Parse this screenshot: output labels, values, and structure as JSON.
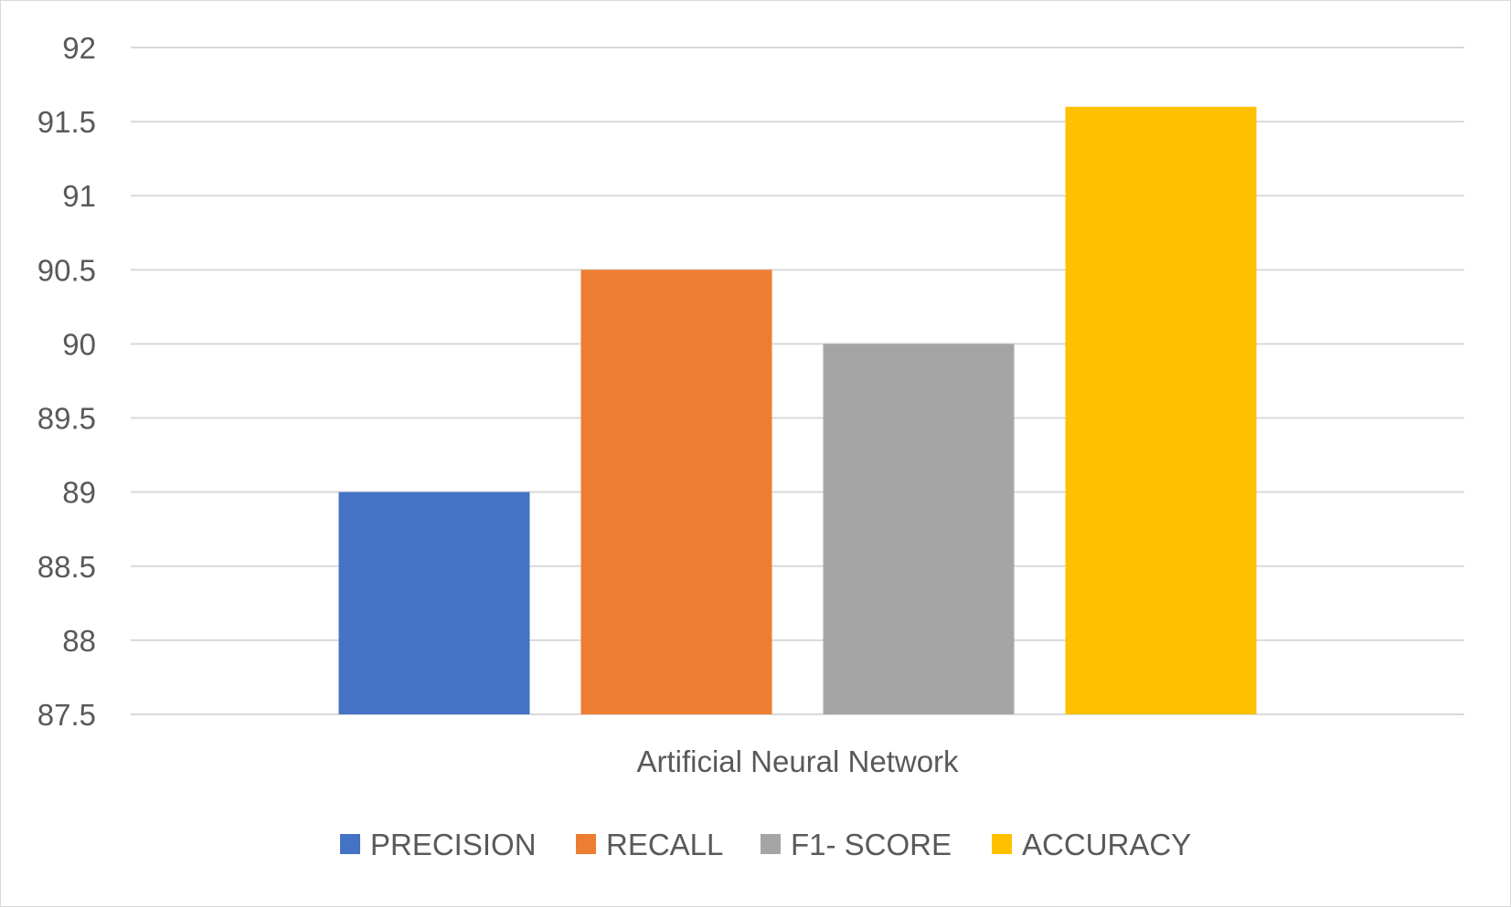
{
  "chart_data": {
    "type": "bar",
    "title": "",
    "xlabel": "",
    "ylabel": "",
    "categories": [
      "Artificial Neural Network"
    ],
    "series": [
      {
        "name": "PRECISION",
        "values": [
          89
        ],
        "color": "#4472c4"
      },
      {
        "name": "RECALL",
        "values": [
          90.5
        ],
        "color": "#ed7d31"
      },
      {
        "name": "F1- SCORE",
        "values": [
          90
        ],
        "color": "#a5a5a5"
      },
      {
        "name": "ACCURACY",
        "values": [
          91.6
        ],
        "color": "#ffc000"
      }
    ],
    "ylim": [
      87.5,
      92
    ],
    "yticks": [
      "87.5",
      "88",
      "88.5",
      "89",
      "89.5",
      "90",
      "90.5",
      "91",
      "91.5",
      "92"
    ],
    "grid": true,
    "legend_position": "bottom"
  }
}
